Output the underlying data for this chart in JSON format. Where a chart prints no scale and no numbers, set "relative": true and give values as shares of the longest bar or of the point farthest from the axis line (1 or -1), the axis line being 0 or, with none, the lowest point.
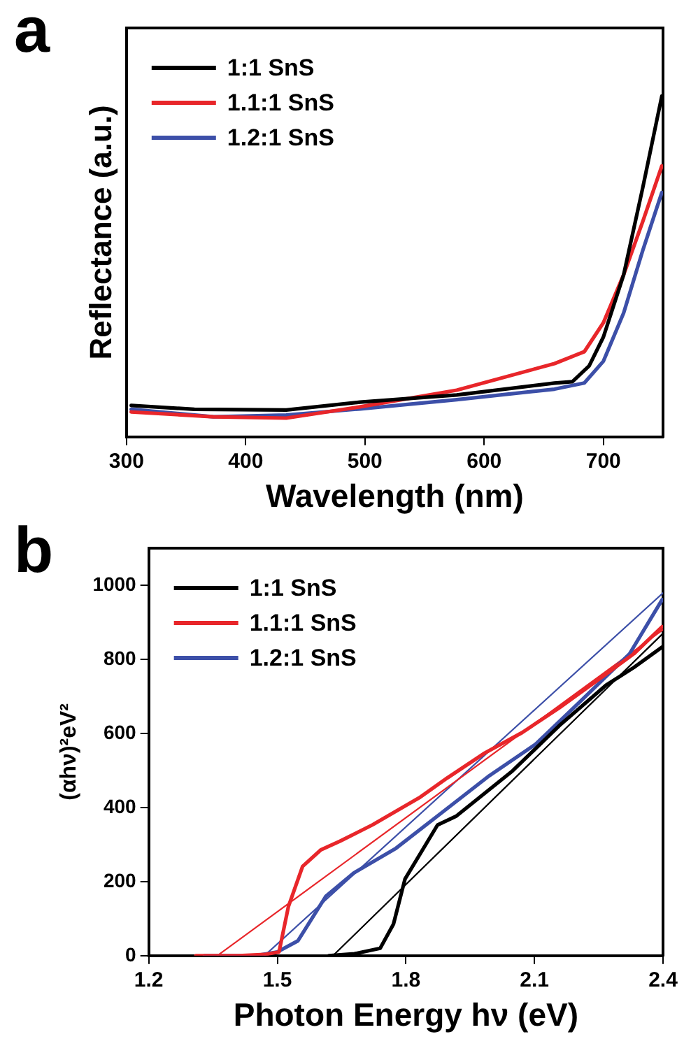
{
  "chart_data": [
    {
      "type": "line",
      "title": "a",
      "xlabel": "Wavelength (nm)",
      "ylabel": "Reflectance (a.u.)",
      "relative": true,
      "xlim": [
        300,
        750
      ],
      "xticks": [
        300,
        400,
        500,
        600,
        700
      ],
      "grid": false,
      "legend": "top left",
      "marker": "none",
      "line_style": "solid",
      "series": [
        {
          "name": "1:1 SnS",
          "color": "#000000",
          "x": [
            304,
            357,
            434,
            496,
            577,
            659,
            674,
            688,
            700,
            717,
            733,
            749
          ],
          "values": [
            0.092,
            0.081,
            0.079,
            0.102,
            0.123,
            0.158,
            0.162,
            0.208,
            0.293,
            0.476,
            0.731,
            1
          ]
        },
        {
          "name": "1.1:1 SnS",
          "color": "#e8262a",
          "x": [
            304,
            373,
            434,
            496,
            577,
            659,
            684,
            700,
            717,
            733,
            749
          ],
          "values": [
            0.073,
            0.059,
            0.055,
            0.088,
            0.137,
            0.215,
            0.25,
            0.335,
            0.476,
            0.632,
            0.795
          ]
        },
        {
          "name": "1.2:1 SnS",
          "color": "#3c4fa8",
          "x": [
            304,
            373,
            434,
            496,
            577,
            659,
            684,
            700,
            717,
            733,
            749
          ],
          "values": [
            0.081,
            0.059,
            0.064,
            0.082,
            0.109,
            0.14,
            0.158,
            0.222,
            0.364,
            0.547,
            0.717
          ]
        }
      ]
    },
    {
      "type": "line",
      "title": "b",
      "xlabel": "Photon Energy hν (eV)",
      "ylabel": "(αhν)²eV²",
      "xlim": [
        1.2,
        2.4
      ],
      "xticks": [
        1.2,
        1.5,
        1.8,
        2.1,
        2.4
      ],
      "ylim": [
        0,
        1100
      ],
      "yticks": [
        0,
        200,
        400,
        600,
        800,
        1000
      ],
      "grid": false,
      "legend": "top left",
      "marker": "none",
      "line_style": "solid",
      "series": [
        {
          "name": "1:1 SnS",
          "color": "#000000",
          "x": [
            1.62,
            1.68,
            1.74,
            1.771,
            1.798,
            1.874,
            1.918,
            2.049,
            2.158,
            2.267,
            2.332,
            2.398
          ],
          "values": [
            0,
            5,
            20,
            85,
            207,
            353,
            377,
            499,
            621,
            730,
            778,
            833
          ]
        },
        {
          "name": "1.1:1 SnS",
          "color": "#e8262a",
          "x": [
            1.31,
            1.41,
            1.47,
            1.504,
            1.526,
            1.559,
            1.602,
            1.646,
            1.722,
            1.831,
            1.897,
            1.984,
            2.071,
            2.158,
            2.267,
            2.332,
            2.398
          ],
          "values": [
            0,
            0,
            3,
            10,
            133,
            241,
            286,
            309,
            353,
            426,
            480,
            547,
            602,
            669,
            760,
            815,
            888
          ]
        },
        {
          "name": "1.2:1 SnS",
          "color": "#3c4fa8",
          "x": [
            1.33,
            1.45,
            1.5,
            1.548,
            1.613,
            1.678,
            1.777,
            1.886,
            1.995,
            2.104,
            2.213,
            2.322,
            2.398
          ],
          "values": [
            0,
            0,
            10,
            40,
            160,
            223,
            290,
            388,
            486,
            572,
            693,
            815,
            961
          ]
        },
        {
          "color": "#000000",
          "x": [
            1.63,
            2.4
          ],
          "values": [
            0,
            870
          ]
        },
        {
          "color": "#e8262a",
          "x": [
            1.36,
            2.4
          ],
          "values": [
            0,
            880
          ]
        },
        {
          "color": "#3c4fa8",
          "x": [
            1.47,
            2.4
          ],
          "values": [
            0,
            979
          ]
        }
      ]
    }
  ]
}
